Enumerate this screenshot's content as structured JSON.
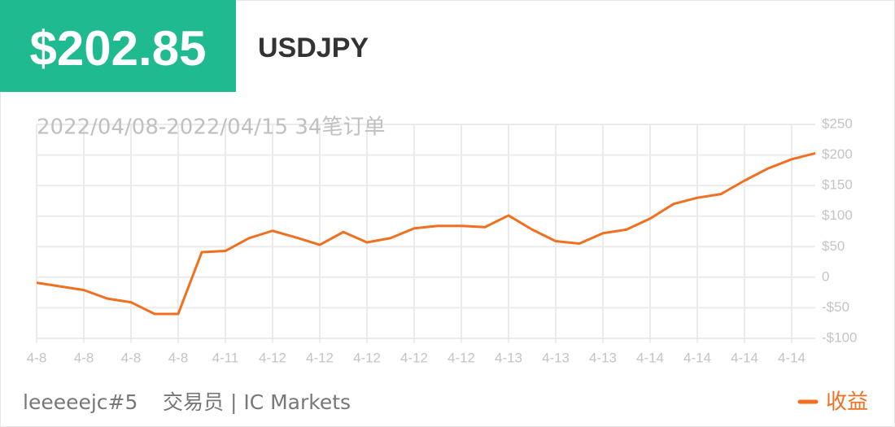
{
  "header": {
    "amount": "$202.85",
    "symbol": "USDJPY"
  },
  "footer": {
    "trader": "leeeeejc#5",
    "role": "交易员 | IC Markets"
  },
  "chart_data": {
    "type": "line",
    "subtitle": "2022/04/08-2022/04/15 34笔订单",
    "categories": [
      "4-8",
      null,
      "4-8",
      null,
      "4-8",
      null,
      "4-8",
      null,
      "4-11",
      null,
      "4-12",
      null,
      "4-12",
      null,
      "4-12",
      null,
      "4-12",
      null,
      "4-12",
      null,
      "4-13",
      null,
      "4-13",
      null,
      "4-13",
      null,
      "4-14",
      null,
      "4-14",
      null,
      "4-14",
      null,
      "4-14",
      null
    ],
    "series": [
      {
        "name": "收益",
        "color": "#f07020",
        "values": [
          -9,
          -15,
          -21,
          -35,
          -41,
          -60,
          -60,
          41,
          43,
          64,
          76,
          65,
          53,
          74,
          57,
          64,
          80,
          84,
          84,
          82,
          101,
          78,
          59,
          55,
          72,
          78,
          96,
          120,
          130,
          136,
          158,
          178,
          193,
          202.85
        ]
      }
    ],
    "ylim": [
      -100,
      250
    ],
    "yticks": [
      {
        "value": -100,
        "label": "-$100"
      },
      {
        "value": -50,
        "label": "-$50"
      },
      0,
      {
        "value": 50,
        "label": "$50"
      },
      {
        "value": 100,
        "label": "$100"
      },
      {
        "value": 150,
        "label": "$150"
      },
      {
        "value": 200,
        "label": "$200"
      },
      {
        "value": 250,
        "label": "$250"
      }
    ],
    "grid": true,
    "legend": "bottom-right"
  }
}
